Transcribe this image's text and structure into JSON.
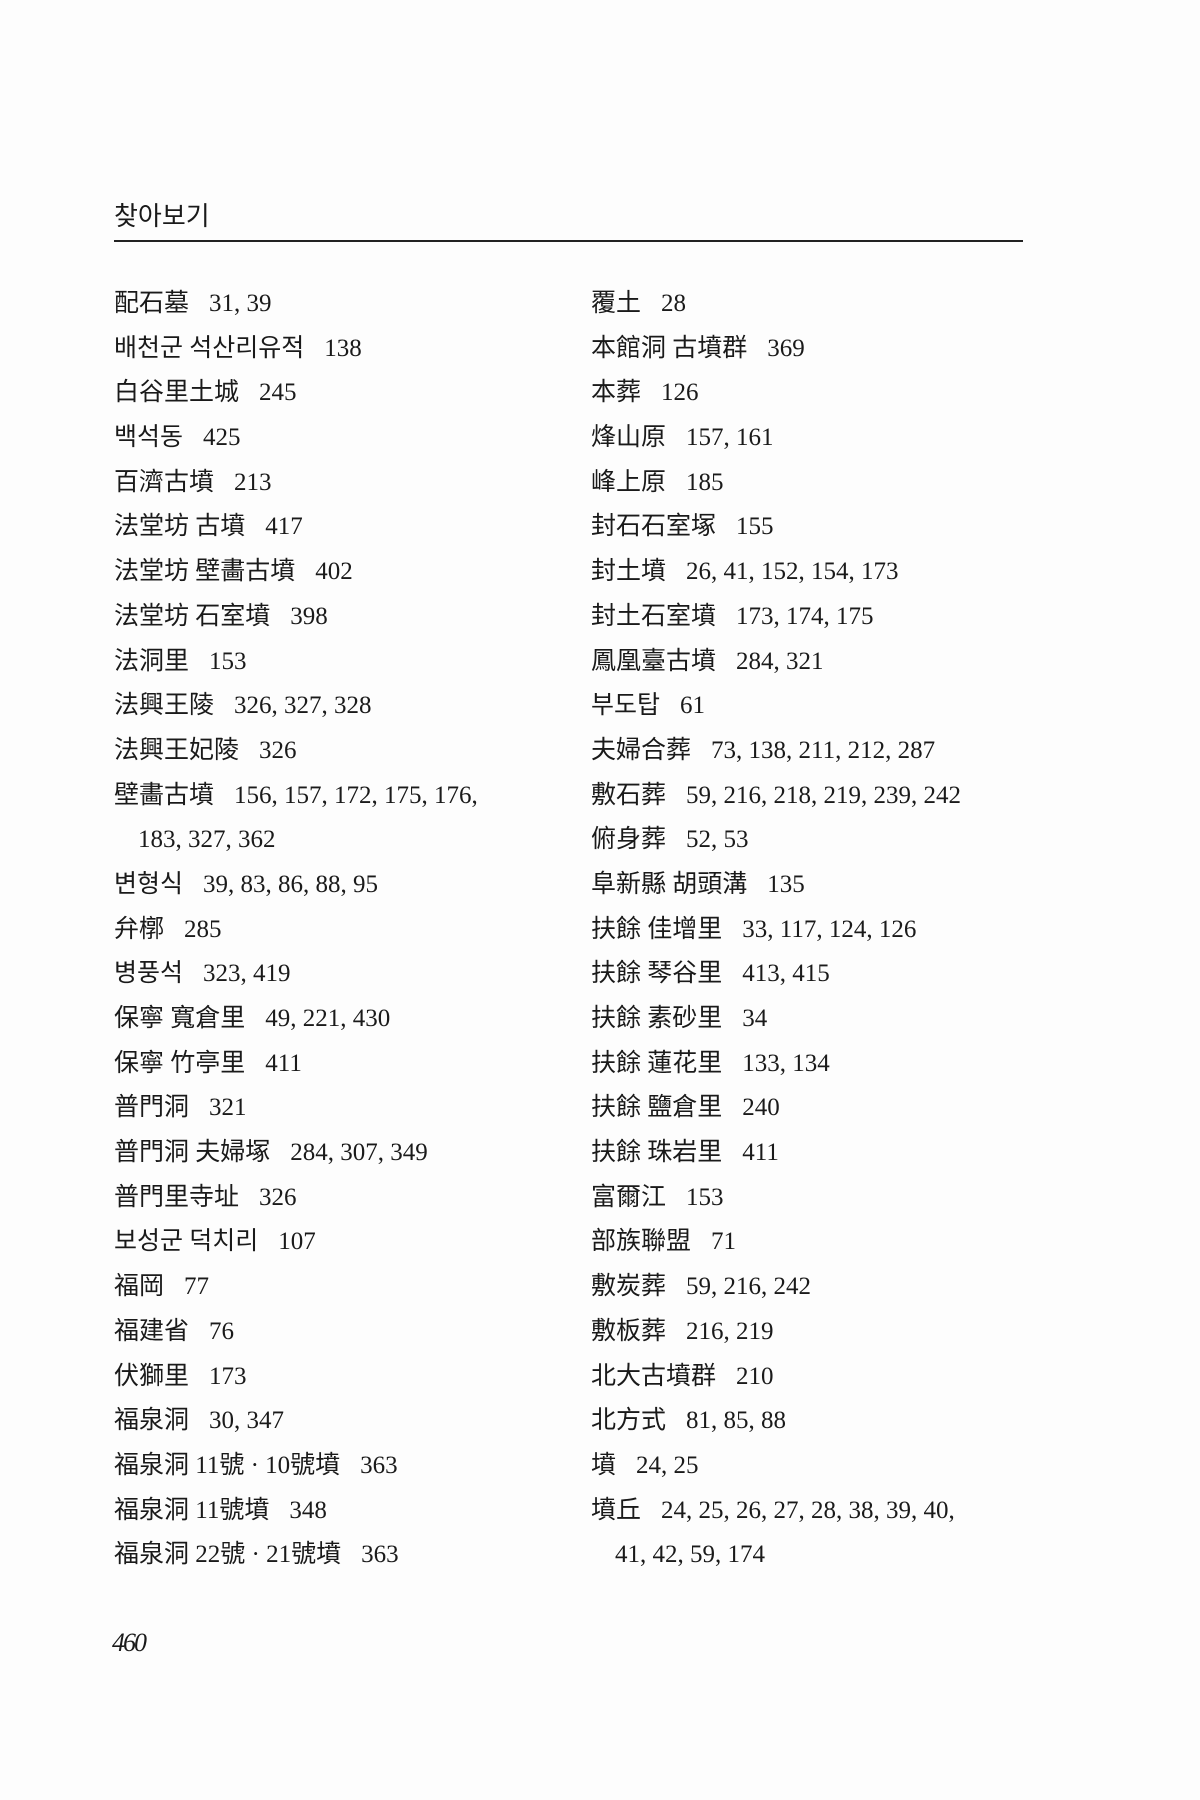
{
  "header": {
    "title": "찾아보기"
  },
  "page_number": "460",
  "left_column": [
    {
      "term": "配石墓",
      "pages": "31, 39"
    },
    {
      "term": "배천군 석산리유적",
      "pages": "138"
    },
    {
      "term": "白谷里土城",
      "pages": "245"
    },
    {
      "term": "백석동",
      "pages": "425"
    },
    {
      "term": "百濟古墳",
      "pages": "213"
    },
    {
      "term": "法堂坊 古墳",
      "pages": "417"
    },
    {
      "term": "法堂坊 壁畵古墳",
      "pages": "402"
    },
    {
      "term": "法堂坊 石室墳",
      "pages": "398"
    },
    {
      "term": "法洞里",
      "pages": "153"
    },
    {
      "term": "法興王陵",
      "pages": "326, 327, 328"
    },
    {
      "term": "法興王妃陵",
      "pages": "326"
    },
    {
      "term": "壁畵古墳",
      "pages": "156, 157, 172, 175, 176,",
      "pages_cont": "183, 327, 362"
    },
    {
      "term": "변형식",
      "pages": "39, 83, 86, 88, 95"
    },
    {
      "term": "弁槨",
      "pages": "285"
    },
    {
      "term": "병풍석",
      "pages": "323, 419"
    },
    {
      "term": "保寧 寬倉里",
      "pages": "49, 221, 430"
    },
    {
      "term": "保寧 竹亭里",
      "pages": "411"
    },
    {
      "term": "普門洞",
      "pages": "321"
    },
    {
      "term": "普門洞 夫婦塚",
      "pages": "284, 307, 349"
    },
    {
      "term": "普門里寺址",
      "pages": "326"
    },
    {
      "term": "보성군 덕치리",
      "pages": "107"
    },
    {
      "term": "福岡",
      "pages": "77"
    },
    {
      "term": "福建省",
      "pages": "76"
    },
    {
      "term": "伏獅里",
      "pages": "173"
    },
    {
      "term": "福泉洞",
      "pages": "30, 347"
    },
    {
      "term": "福泉洞 11號 · 10號墳",
      "pages": "363"
    },
    {
      "term": "福泉洞 11號墳",
      "pages": "348"
    },
    {
      "term": "福泉洞 22號 · 21號墳",
      "pages": "363"
    }
  ],
  "right_column": [
    {
      "term": "覆土",
      "pages": "28"
    },
    {
      "term": "本館洞 古墳群",
      "pages": "369"
    },
    {
      "term": "本葬",
      "pages": "126"
    },
    {
      "term": "烽山原",
      "pages": "157, 161"
    },
    {
      "term": "峰上原",
      "pages": "185"
    },
    {
      "term": "封石石室塚",
      "pages": "155"
    },
    {
      "term": "封土墳",
      "pages": "26, 41, 152, 154, 173"
    },
    {
      "term": "封土石室墳",
      "pages": "173, 174, 175"
    },
    {
      "term": "鳳凰臺古墳",
      "pages": "284, 321"
    },
    {
      "term": "부도탑",
      "pages": "61"
    },
    {
      "term": "夫婦合葬",
      "pages": "73, 138, 211, 212, 287"
    },
    {
      "term": "敷石葬",
      "pages": "59, 216, 218, 219, 239, 242"
    },
    {
      "term": "俯身葬",
      "pages": "52, 53"
    },
    {
      "term": "阜新縣 胡頭溝",
      "pages": "135"
    },
    {
      "term": "扶餘 佳增里",
      "pages": "33, 117, 124, 126"
    },
    {
      "term": "扶餘 琴谷里",
      "pages": "413, 415"
    },
    {
      "term": "扶餘 素砂里",
      "pages": "34"
    },
    {
      "term": "扶餘 蓮花里",
      "pages": "133, 134"
    },
    {
      "term": "扶餘 鹽倉里",
      "pages": "240"
    },
    {
      "term": "扶餘 珠岩里",
      "pages": "411"
    },
    {
      "term": "富爾江",
      "pages": "153"
    },
    {
      "term": "部族聯盟",
      "pages": "71"
    },
    {
      "term": "敷炭葬",
      "pages": "59, 216, 242"
    },
    {
      "term": "敷板葬",
      "pages": "216, 219"
    },
    {
      "term": "北大古墳群",
      "pages": "210"
    },
    {
      "term": "北方式",
      "pages": "81, 85, 88"
    },
    {
      "term": "墳",
      "pages": "24, 25"
    },
    {
      "term": "墳丘",
      "pages": "24, 25, 26, 27, 28, 38, 39, 40,",
      "pages_cont": "41, 42, 59, 174"
    }
  ]
}
